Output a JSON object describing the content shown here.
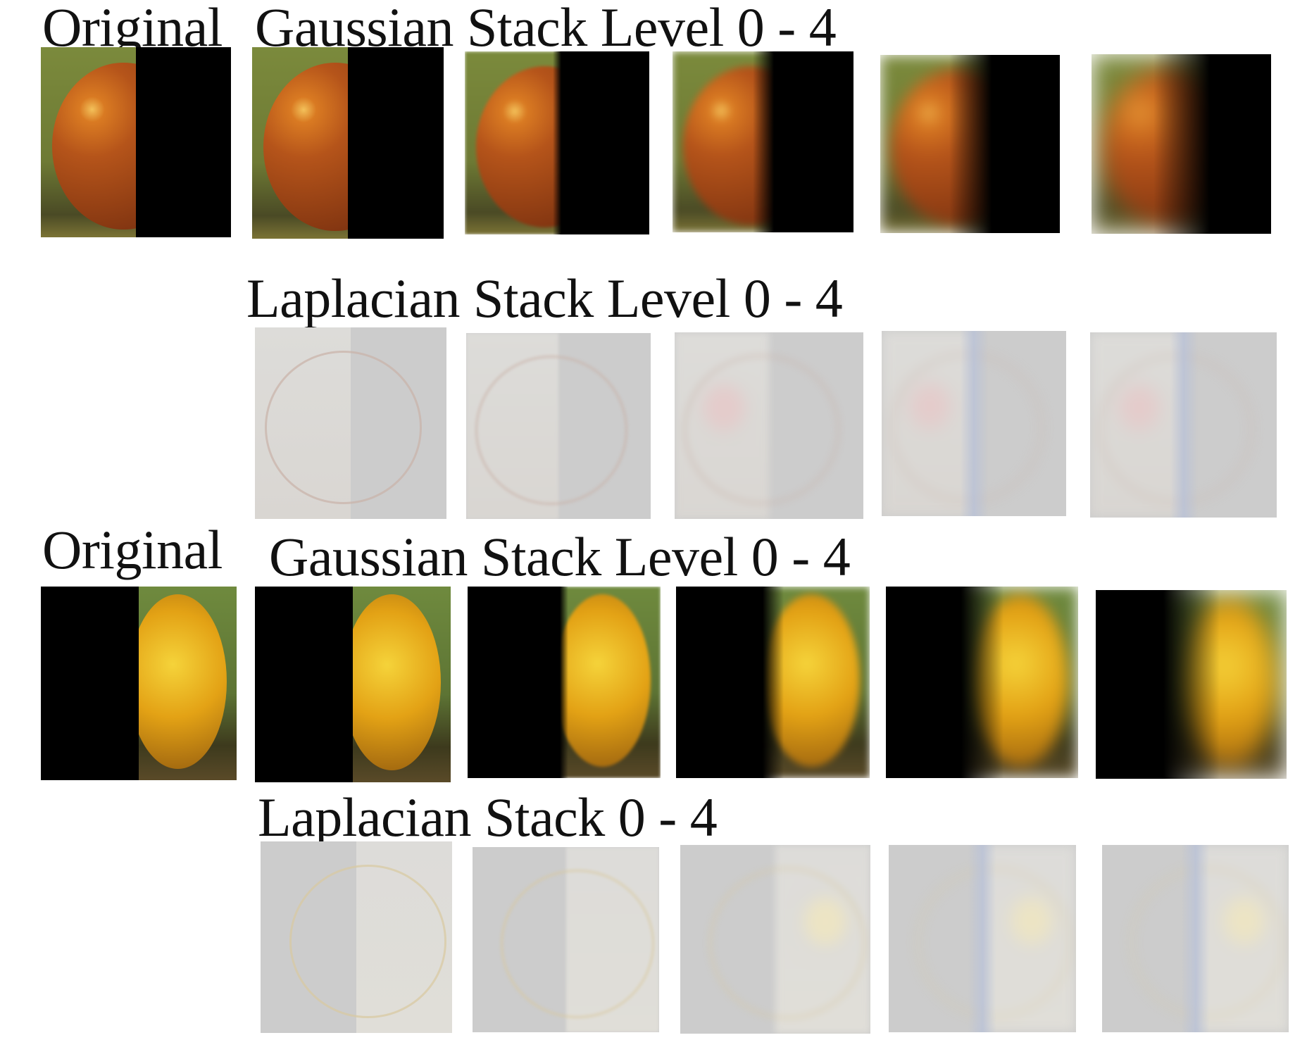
{
  "labels": {
    "apple_original": "Original",
    "apple_gaussian": "Gaussian Stack Level 0 - 4",
    "apple_laplacian": "Laplacian Stack Level 0 - 4",
    "orange_original": "Original",
    "orange_gaussian": "Gaussian Stack Level 0 - 4",
    "orange_laplacian": "Laplacian Stack 0 - 4"
  },
  "rows": [
    {
      "id": "apple-gaussian",
      "fruit": "apple",
      "kind": "gaussian",
      "fruit_side": "left",
      "levels": [
        0,
        0,
        1,
        2,
        3,
        4
      ]
    },
    {
      "id": "apple-laplacian",
      "fruit": "apple",
      "kind": "laplacian",
      "fruit_side": "left",
      "levels": [
        0,
        1,
        2,
        3,
        4
      ]
    },
    {
      "id": "orange-gaussian",
      "fruit": "orange",
      "kind": "gaussian",
      "fruit_side": "right",
      "levels": [
        0,
        0,
        1,
        2,
        3,
        4
      ]
    },
    {
      "id": "orange-laplacian",
      "fruit": "orange",
      "kind": "laplacian",
      "fruit_side": "right",
      "levels": [
        0,
        1,
        2,
        3,
        4
      ]
    }
  ],
  "colors": {
    "apple": "#b5541a",
    "apple_highlight": "#f3c15a",
    "orange": "#e3a215",
    "orange_highlight": "#f5d33a",
    "leaf_green": "#7b8a3c",
    "laplacian_gray": "#cccccc",
    "black": "#000000"
  }
}
